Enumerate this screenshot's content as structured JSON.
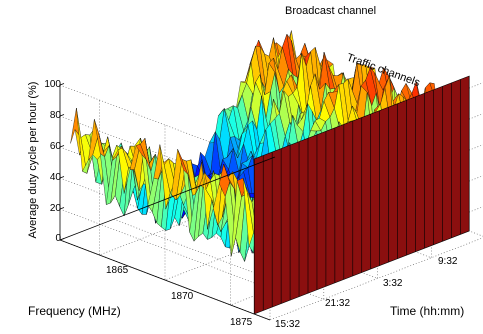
{
  "chart_data": {
    "type": "surface",
    "title": "",
    "zlabel": "Average duty cycle per hour (%)",
    "xlabel": "Frequency (MHz)",
    "ylabel": "Time (hh:mm)",
    "zlim": [
      0,
      100
    ],
    "z_ticks": [
      "0",
      "20",
      "40",
      "60",
      "80",
      "100"
    ],
    "frequency_ticks": [
      "1865",
      "1870",
      "1875"
    ],
    "time_ticks": [
      "15:32",
      "21:32",
      "3:32",
      "9:32"
    ],
    "frequency_range_mhz": [
      1862,
      1878
    ],
    "time_range_h": [
      0,
      24
    ],
    "annotations": [
      "Broadcast channel",
      "Traffic channels"
    ],
    "broadcast_channel": {
      "frequency_mhz": 1863.2,
      "duty_cycle": 100
    },
    "traffic_channel_profile": {
      "time_h": [
        0,
        3,
        6,
        9,
        12,
        15,
        18,
        21,
        24
      ],
      "duty_cycle_peak": [
        80,
        62,
        40,
        15,
        8,
        25,
        60,
        85,
        80
      ]
    },
    "colormap": "jet",
    "grid": true
  }
}
